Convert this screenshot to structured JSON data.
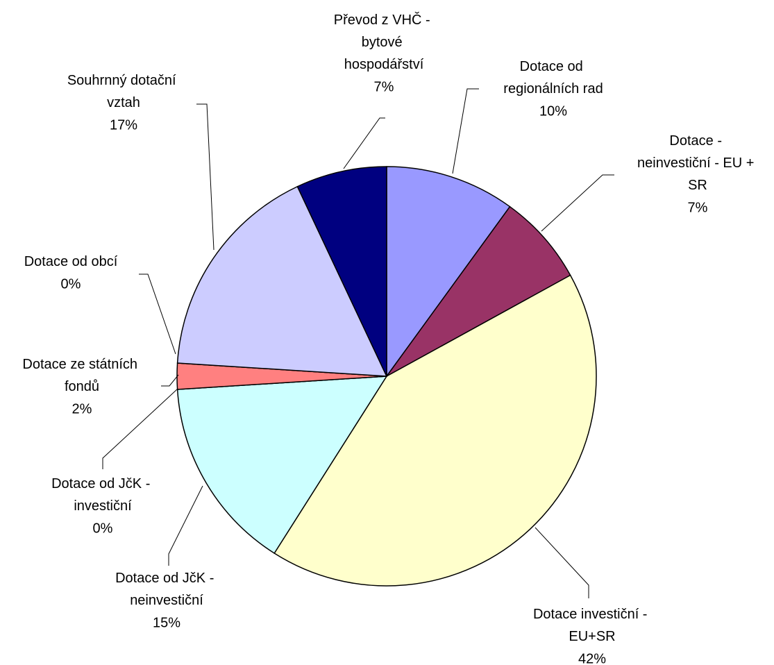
{
  "chart_data": {
    "type": "pie",
    "categories": [
      "Dotace od regionálních rad",
      "Dotace - neinvestiční - EU + SR",
      "Dotace investiční - EU+SR",
      "Dotace od JčK - neinvestiční",
      "Dotace od JčK - investiční",
      "Dotace ze státních fondů",
      "Dotace od obcí",
      "Souhrnný dotační vztah",
      "Převod z VHČ - bytové hospodářství"
    ],
    "values": [
      10,
      7,
      42,
      15,
      0,
      2,
      0,
      17,
      7
    ],
    "value_labels": [
      "10%",
      "7%",
      "42%",
      "15%",
      "0%",
      "2%",
      "0%",
      "17%",
      "7%"
    ],
    "colors": [
      "#9999FF",
      "#993366",
      "#FFFFCC",
      "#CCFFFF",
      "#660066",
      "#FF8080",
      "#0066CC",
      "#CCCCFF",
      "#000080"
    ]
  }
}
